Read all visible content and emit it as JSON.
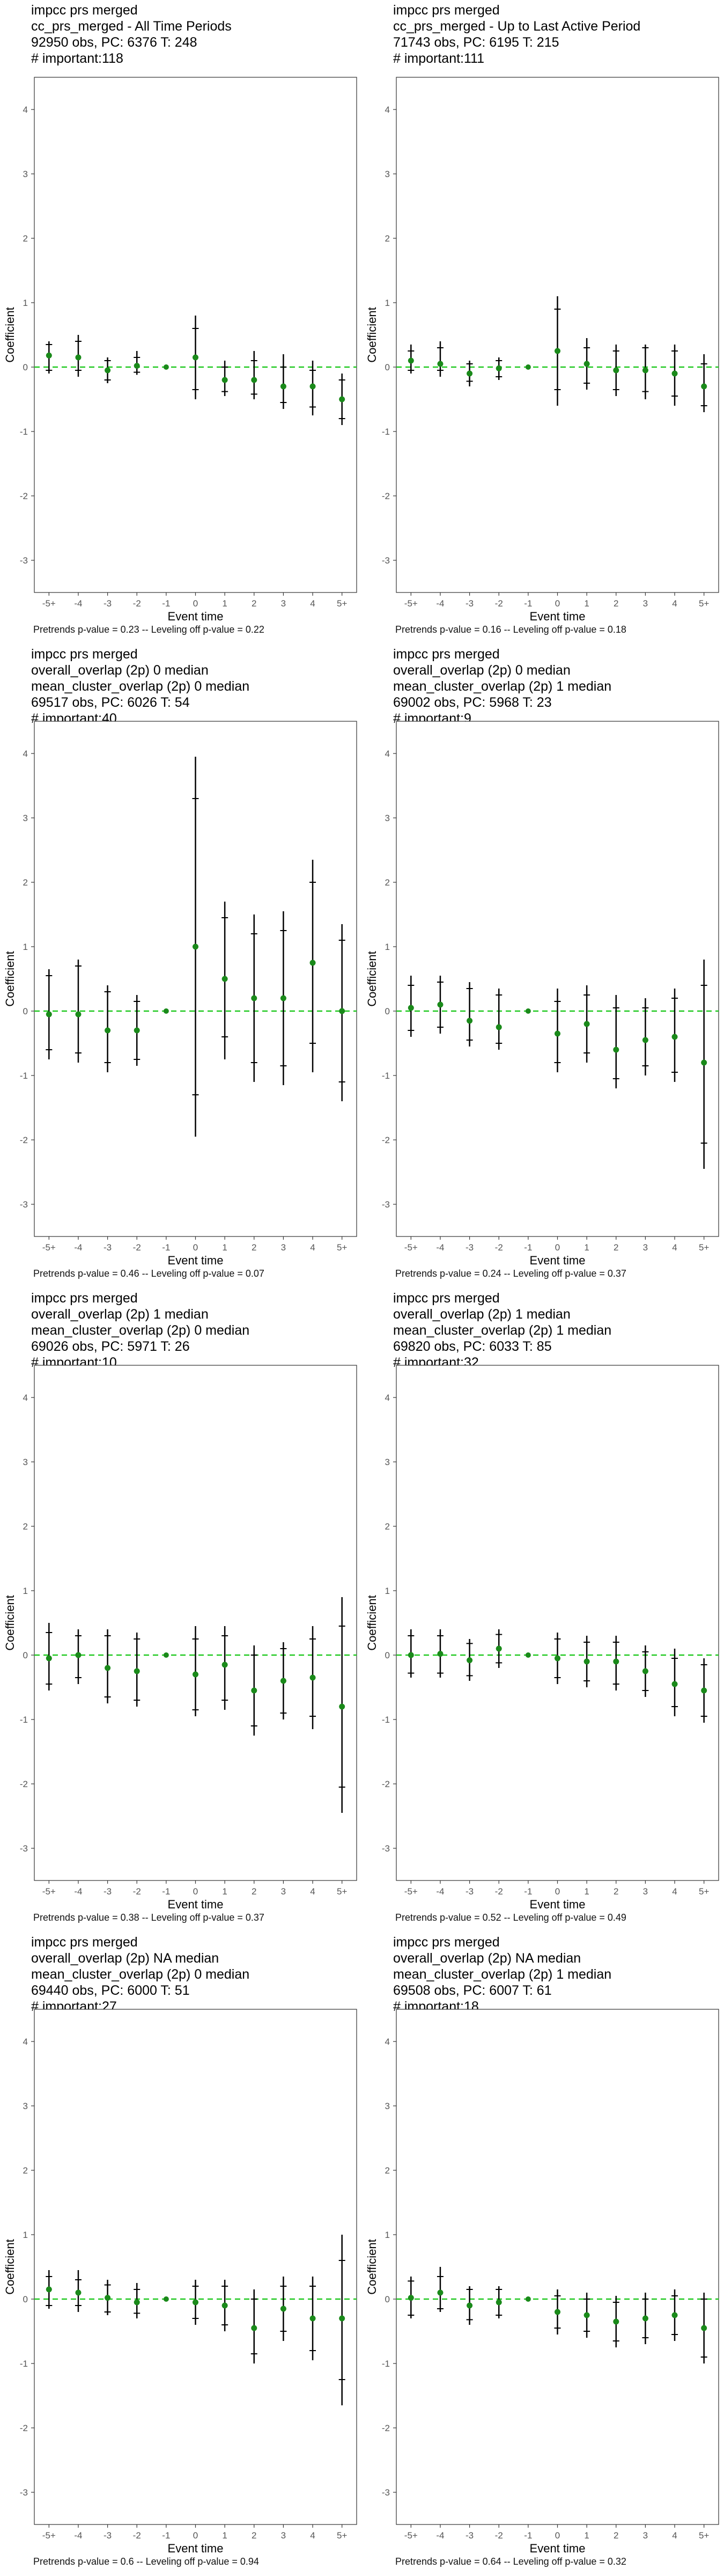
{
  "chart_data": [
    {
      "type": "scatter",
      "title_lines": [
        "impcc prs merged",
        "cc_prs_merged - All Time Periods",
        "92950 obs, PC: 6376 T: 248",
        "# important:118"
      ],
      "caption": "Pretrends p-value = 0.23 -- Leveling off p-value = 0.22",
      "xlabel": "Event time",
      "ylabel": "Coefficient",
      "categories": [
        "-5+",
        "-4",
        "-3",
        "-2",
        "-1",
        "0",
        "1",
        "2",
        "3",
        "4",
        "5+"
      ],
      "ylim": [
        -3.5,
        4.5
      ],
      "yticks": [
        -3,
        -2,
        -1,
        0,
        1,
        2,
        3,
        4
      ],
      "reference_line": {
        "y": 0,
        "color": "#22c922",
        "style": "dashed"
      },
      "point_color": "#1a8a1a",
      "reference_category": "-1",
      "series": [
        {
          "estimate": [
            0.18,
            0.15,
            -0.05,
            0.02,
            0.0,
            0.15,
            -0.2,
            -0.2,
            -0.3,
            -0.3,
            -0.5
          ],
          "ci95_low": [
            -0.1,
            -0.15,
            -0.25,
            -0.12,
            0.0,
            -0.5,
            -0.45,
            -0.5,
            -0.65,
            -0.75,
            -0.9
          ],
          "ci95_high": [
            0.4,
            0.5,
            0.15,
            0.25,
            0.0,
            0.8,
            0.1,
            0.25,
            0.2,
            0.1,
            -0.1
          ],
          "ci90_low": [
            -0.05,
            -0.05,
            -0.2,
            -0.08,
            0.0,
            -0.35,
            -0.38,
            -0.42,
            -0.55,
            -0.62,
            -0.8
          ],
          "ci90_high": [
            0.35,
            0.4,
            0.1,
            0.15,
            0.0,
            0.6,
            0.0,
            0.1,
            0.0,
            -0.05,
            -0.2
          ]
        }
      ]
    },
    {
      "type": "scatter",
      "title_lines": [
        "impcc prs merged",
        "cc_prs_merged - Up to Last Active Period",
        "71743 obs, PC: 6195 T: 215",
        "# important:111"
      ],
      "caption": "Pretrends p-value = 0.16 -- Leveling off p-value = 0.18",
      "xlabel": "Event time",
      "ylabel": "Coefficient",
      "categories": [
        "-5+",
        "-4",
        "-3",
        "-2",
        "-1",
        "0",
        "1",
        "2",
        "3",
        "4",
        "5+"
      ],
      "ylim": [
        -3.5,
        4.5
      ],
      "yticks": [
        -3,
        -2,
        -1,
        0,
        1,
        2,
        3,
        4
      ],
      "reference_line": {
        "y": 0,
        "color": "#22c922",
        "style": "dashed"
      },
      "point_color": "#1a8a1a",
      "reference_category": "-1",
      "series": [
        {
          "estimate": [
            0.1,
            0.05,
            -0.1,
            -0.02,
            0.0,
            0.25,
            0.05,
            -0.05,
            -0.05,
            -0.1,
            -0.3
          ],
          "ci95_low": [
            -0.1,
            -0.15,
            -0.3,
            -0.2,
            0.0,
            -0.6,
            -0.35,
            -0.45,
            -0.5,
            -0.6,
            -0.7
          ],
          "ci95_high": [
            0.35,
            0.4,
            0.1,
            0.15,
            0.0,
            1.1,
            0.45,
            0.35,
            0.35,
            0.35,
            0.2
          ],
          "ci90_low": [
            -0.05,
            -0.05,
            -0.22,
            -0.15,
            0.0,
            -0.35,
            -0.25,
            -0.35,
            -0.38,
            -0.45,
            -0.6
          ],
          "ci90_high": [
            0.25,
            0.3,
            0.05,
            0.1,
            0.0,
            0.9,
            0.3,
            0.25,
            0.3,
            0.25,
            0.05
          ]
        }
      ]
    },
    {
      "type": "scatter",
      "title_lines": [
        "impcc prs merged",
        "overall_overlap (2p) 0 median",
        "mean_cluster_overlap (2p) 0 median",
        "69517 obs, PC: 6026 T: 54",
        "# important:40"
      ],
      "caption": "Pretrends p-value = 0.46 -- Leveling off p-value = 0.07",
      "xlabel": "Event time",
      "ylabel": "Coefficient",
      "categories": [
        "-5+",
        "-4",
        "-3",
        "-2",
        "-1",
        "0",
        "1",
        "2",
        "3",
        "4",
        "5+"
      ],
      "ylim": [
        -3.5,
        4.5
      ],
      "yticks": [
        -3,
        -2,
        -1,
        0,
        1,
        2,
        3,
        4
      ],
      "reference_line": {
        "y": 0,
        "color": "#22c922",
        "style": "dashed"
      },
      "point_color": "#1a8a1a",
      "reference_category": "-1",
      "series": [
        {
          "estimate": [
            -0.05,
            -0.05,
            -0.3,
            -0.3,
            0.0,
            1.0,
            0.5,
            0.2,
            0.2,
            0.75,
            0.0
          ],
          "ci95_low": [
            -0.75,
            -0.8,
            -0.95,
            -0.85,
            0.0,
            -1.95,
            -0.75,
            -1.1,
            -1.15,
            -0.95,
            -1.4
          ],
          "ci95_high": [
            0.65,
            0.8,
            0.4,
            0.25,
            0.0,
            3.95,
            1.7,
            1.5,
            1.55,
            2.35,
            1.35
          ],
          "ci90_low": [
            -0.6,
            -0.65,
            -0.8,
            -0.75,
            0.0,
            -1.3,
            -0.4,
            -0.8,
            -0.85,
            -0.5,
            -1.1
          ],
          "ci90_high": [
            0.55,
            0.7,
            0.3,
            0.15,
            0.0,
            3.3,
            1.45,
            1.2,
            1.25,
            2.0,
            1.1
          ]
        }
      ]
    },
    {
      "type": "scatter",
      "title_lines": [
        "impcc prs merged",
        "overall_overlap (2p) 0 median",
        "mean_cluster_overlap (2p) 1 median",
        "69002 obs, PC: 5968 T: 23",
        "# important:9"
      ],
      "caption": "Pretrends p-value = 0.24 -- Leveling off p-value = 0.37",
      "xlabel": "Event time",
      "ylabel": "Coefficient",
      "categories": [
        "-5+",
        "-4",
        "-3",
        "-2",
        "-1",
        "0",
        "1",
        "2",
        "3",
        "4",
        "5+"
      ],
      "ylim": [
        -3.5,
        4.5
      ],
      "yticks": [
        -3,
        -2,
        -1,
        0,
        1,
        2,
        3,
        4
      ],
      "reference_line": {
        "y": 0,
        "color": "#22c922",
        "style": "dashed"
      },
      "point_color": "#1a8a1a",
      "reference_category": "-1",
      "series": [
        {
          "estimate": [
            0.05,
            0.1,
            -0.15,
            -0.25,
            0.0,
            -0.35,
            -0.2,
            -0.6,
            -0.45,
            -0.4,
            -0.8
          ],
          "ci95_low": [
            -0.4,
            -0.35,
            -0.55,
            -0.6,
            0.0,
            -0.95,
            -0.8,
            -1.2,
            -1.0,
            -1.1,
            -2.45
          ],
          "ci95_high": [
            0.55,
            0.55,
            0.45,
            0.35,
            0.0,
            0.35,
            0.4,
            0.25,
            0.2,
            0.35,
            0.8
          ],
          "ci90_low": [
            -0.3,
            -0.25,
            -0.45,
            -0.5,
            0.0,
            -0.8,
            -0.65,
            -1.05,
            -0.85,
            -0.95,
            -2.05
          ],
          "ci90_high": [
            0.4,
            0.45,
            0.35,
            0.25,
            0.0,
            0.15,
            0.25,
            0.05,
            0.05,
            0.2,
            0.4
          ]
        }
      ]
    },
    {
      "type": "scatter",
      "title_lines": [
        "impcc prs merged",
        "overall_overlap (2p) 1 median",
        "mean_cluster_overlap (2p) 0 median",
        "69026 obs, PC: 5971 T: 26",
        "# important:10"
      ],
      "caption": "Pretrends p-value = 0.38 -- Leveling off p-value = 0.37",
      "xlabel": "Event time",
      "ylabel": "Coefficient",
      "categories": [
        "-5+",
        "-4",
        "-3",
        "-2",
        "-1",
        "0",
        "1",
        "2",
        "3",
        "4",
        "5+"
      ],
      "ylim": [
        -3.5,
        4.5
      ],
      "yticks": [
        -3,
        -2,
        -1,
        0,
        1,
        2,
        3,
        4
      ],
      "reference_line": {
        "y": 0,
        "color": "#22c922",
        "style": "dashed"
      },
      "point_color": "#1a8a1a",
      "reference_category": "-1",
      "series": [
        {
          "estimate": [
            -0.05,
            0.0,
            -0.2,
            -0.25,
            0.0,
            -0.3,
            -0.15,
            -0.55,
            -0.4,
            -0.35,
            -0.8
          ],
          "ci95_low": [
            -0.55,
            -0.45,
            -0.75,
            -0.8,
            0.0,
            -0.95,
            -0.85,
            -1.25,
            -1.0,
            -1.15,
            -2.45
          ],
          "ci95_high": [
            0.5,
            0.4,
            0.4,
            0.35,
            0.0,
            0.45,
            0.45,
            0.15,
            0.2,
            0.45,
            0.9
          ],
          "ci90_low": [
            -0.45,
            -0.35,
            -0.65,
            -0.7,
            0.0,
            -0.85,
            -0.7,
            -1.1,
            -0.9,
            -0.95,
            -2.05
          ],
          "ci90_high": [
            0.35,
            0.3,
            0.3,
            0.25,
            0.0,
            0.25,
            0.3,
            0.0,
            0.1,
            0.25,
            0.45
          ]
        }
      ]
    },
    {
      "type": "scatter",
      "title_lines": [
        "impcc prs merged",
        "overall_overlap (2p) 1 median",
        "mean_cluster_overlap (2p) 1 median",
        "69820 obs, PC: 6033 T: 85",
        "# important:32"
      ],
      "caption": "Pretrends p-value = 0.52 -- Leveling off p-value = 0.49",
      "xlabel": "Event time",
      "ylabel": "Coefficient",
      "categories": [
        "-5+",
        "-4",
        "-3",
        "-2",
        "-1",
        "0",
        "1",
        "2",
        "3",
        "4",
        "5+"
      ],
      "ylim": [
        -3.5,
        4.5
      ],
      "yticks": [
        -3,
        -2,
        -1,
        0,
        1,
        2,
        3,
        4
      ],
      "reference_line": {
        "y": 0,
        "color": "#22c922",
        "style": "dashed"
      },
      "point_color": "#1a8a1a",
      "reference_category": "-1",
      "series": [
        {
          "estimate": [
            0.0,
            0.02,
            -0.08,
            0.1,
            0.0,
            -0.05,
            -0.1,
            -0.1,
            -0.25,
            -0.45,
            -0.55
          ],
          "ci95_low": [
            -0.35,
            -0.35,
            -0.4,
            -0.2,
            0.0,
            -0.45,
            -0.5,
            -0.55,
            -0.65,
            -0.95,
            -1.05
          ],
          "ci95_high": [
            0.4,
            0.4,
            0.25,
            0.4,
            0.0,
            0.35,
            0.3,
            0.3,
            0.15,
            0.1,
            -0.05
          ],
          "ci90_low": [
            -0.28,
            -0.28,
            -0.32,
            -0.12,
            0.0,
            -0.35,
            -0.4,
            -0.45,
            -0.55,
            -0.8,
            -0.95
          ],
          "ci90_high": [
            0.3,
            0.3,
            0.18,
            0.32,
            0.0,
            0.25,
            0.2,
            0.2,
            0.05,
            -0.05,
            -0.15
          ]
        }
      ]
    },
    {
      "type": "scatter",
      "title_lines": [
        "impcc prs merged",
        "overall_overlap (2p) NA median",
        "mean_cluster_overlap (2p) 0 median",
        "69440 obs, PC: 6000 T: 51",
        "# important:27"
      ],
      "caption": "Pretrends p-value = 0.6 -- Leveling off p-value = 0.94",
      "xlabel": "Event time",
      "ylabel": "Coefficient",
      "categories": [
        "-5+",
        "-4",
        "-3",
        "-2",
        "-1",
        "0",
        "1",
        "2",
        "3",
        "4",
        "5+"
      ],
      "ylim": [
        -3.5,
        4.5
      ],
      "yticks": [
        -3,
        -2,
        -1,
        0,
        1,
        2,
        3,
        4
      ],
      "reference_line": {
        "y": 0,
        "color": "#22c922",
        "style": "dashed"
      },
      "point_color": "#1a8a1a",
      "reference_category": "-1",
      "series": [
        {
          "estimate": [
            0.15,
            0.1,
            0.02,
            -0.05,
            0.0,
            -0.05,
            -0.1,
            -0.45,
            -0.15,
            -0.3,
            -0.3
          ],
          "ci95_low": [
            -0.15,
            -0.2,
            -0.25,
            -0.3,
            0.0,
            -0.4,
            -0.5,
            -1.0,
            -0.65,
            -0.95,
            -1.65
          ],
          "ci95_high": [
            0.45,
            0.45,
            0.3,
            0.25,
            0.0,
            0.3,
            0.3,
            0.15,
            0.35,
            0.35,
            1.0
          ],
          "ci90_low": [
            -0.1,
            -0.1,
            -0.2,
            -0.22,
            0.0,
            -0.3,
            -0.4,
            -0.85,
            -0.5,
            -0.8,
            -1.25
          ],
          "ci90_high": [
            0.35,
            0.3,
            0.22,
            0.15,
            0.0,
            0.2,
            0.2,
            0.0,
            0.2,
            0.2,
            0.6
          ]
        }
      ]
    },
    {
      "type": "scatter",
      "title_lines": [
        "impcc prs merged",
        "overall_overlap (2p) NA median",
        "mean_cluster_overlap (2p) 1 median",
        "69508 obs, PC: 6007 T: 61",
        "# important:18"
      ],
      "caption": "Pretrends p-value = 0.64 -- Leveling off p-value = 0.32",
      "xlabel": "Event time",
      "ylabel": "Coefficient",
      "categories": [
        "-5+",
        "-4",
        "-3",
        "-2",
        "-1",
        "0",
        "1",
        "2",
        "3",
        "4",
        "5+"
      ],
      "ylim": [
        -3.5,
        4.5
      ],
      "yticks": [
        -3,
        -2,
        -1,
        0,
        1,
        2,
        3,
        4
      ],
      "reference_line": {
        "y": 0,
        "color": "#22c922",
        "style": "dashed"
      },
      "point_color": "#1a8a1a",
      "reference_category": "-1",
      "series": [
        {
          "estimate": [
            0.02,
            0.1,
            -0.1,
            -0.05,
            0.0,
            -0.2,
            -0.25,
            -0.35,
            -0.3,
            -0.25,
            -0.45
          ],
          "ci95_low": [
            -0.3,
            -0.2,
            -0.4,
            -0.3,
            0.0,
            -0.55,
            -0.6,
            -0.75,
            -0.7,
            -0.65,
            -1.0
          ],
          "ci95_high": [
            0.35,
            0.5,
            0.2,
            0.2,
            0.0,
            0.15,
            0.1,
            0.05,
            0.1,
            0.15,
            0.1
          ],
          "ci90_low": [
            -0.25,
            -0.15,
            -0.32,
            -0.25,
            0.0,
            -0.45,
            -0.5,
            -0.65,
            -0.6,
            -0.55,
            -0.9
          ],
          "ci90_high": [
            0.28,
            0.35,
            0.15,
            0.15,
            0.0,
            0.05,
            0.0,
            -0.05,
            0.0,
            0.05,
            0.0
          ]
        }
      ]
    }
  ]
}
